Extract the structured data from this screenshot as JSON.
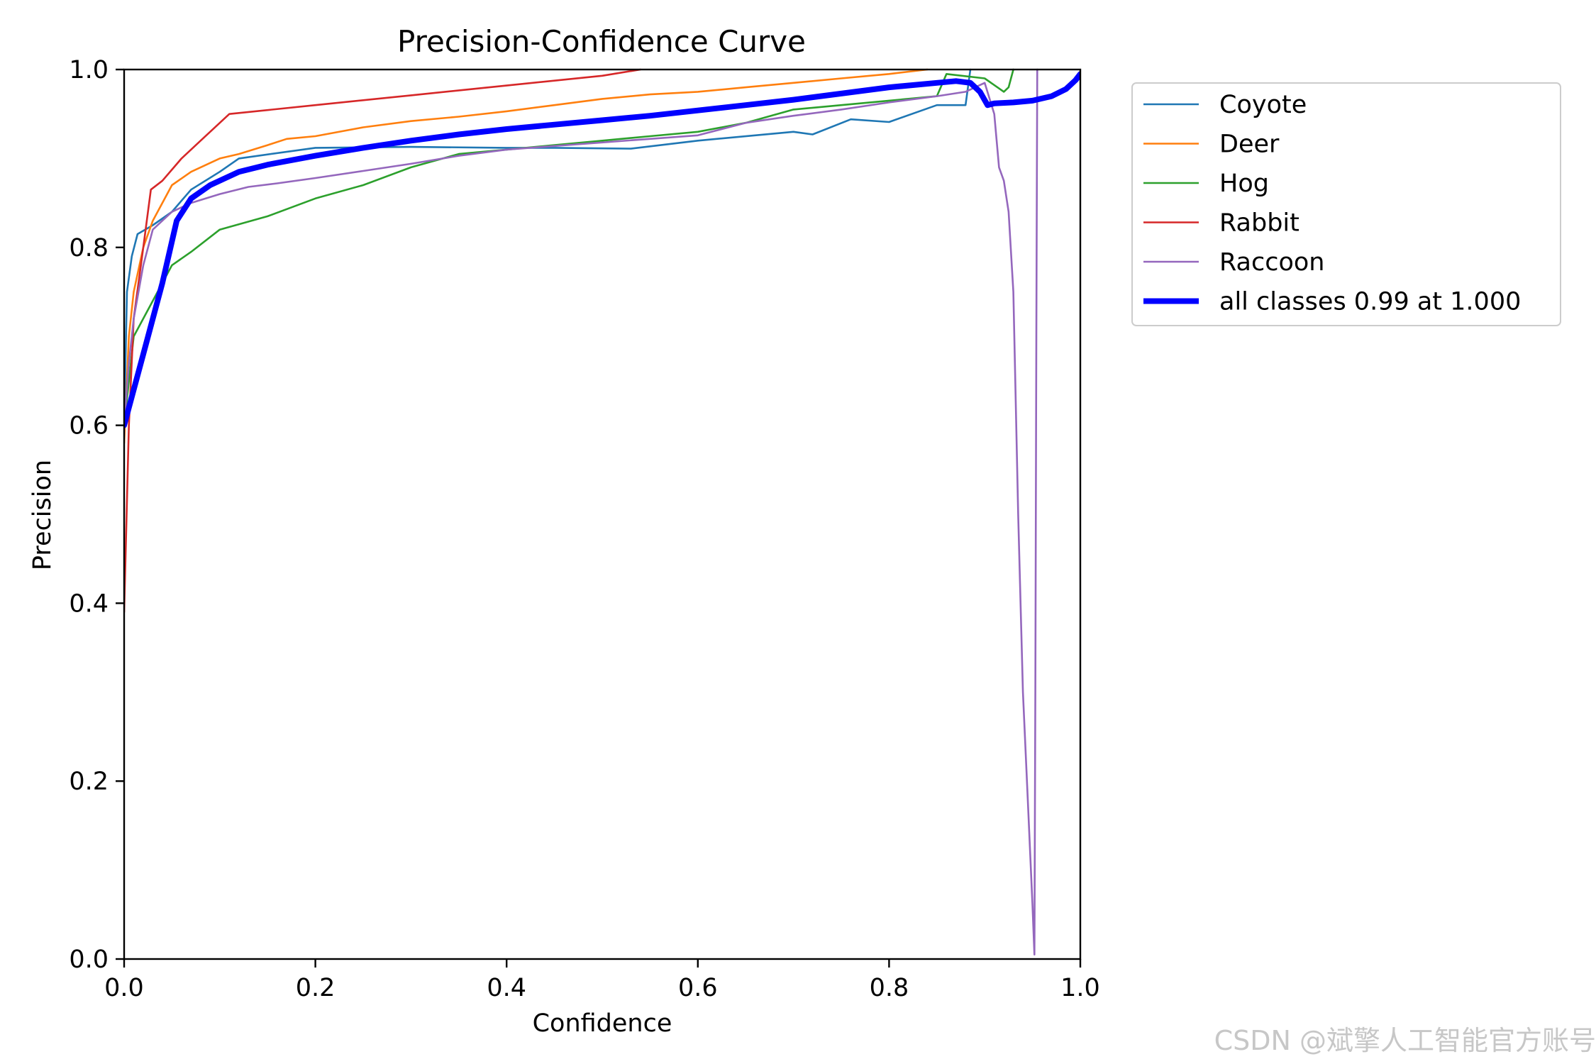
{
  "chart_data": {
    "type": "line",
    "title": "Precision-Confidence Curve",
    "xlabel": "Confidence",
    "ylabel": "Precision",
    "xlim": [
      0.0,
      1.0
    ],
    "ylim": [
      0.0,
      1.0
    ],
    "xticks": [
      "0.0",
      "0.2",
      "0.4",
      "0.6",
      "0.8",
      "1.0"
    ],
    "yticks": [
      "0.0",
      "0.2",
      "0.4",
      "0.6",
      "0.8",
      "1.0"
    ],
    "grid": false,
    "legend_position": "outside-right-top",
    "series": [
      {
        "name": "Coyote",
        "color": "#1f77b4",
        "x": [
          0.0,
          0.003,
          0.008,
          0.014,
          0.03,
          0.05,
          0.07,
          0.1,
          0.12,
          0.2,
          0.3,
          0.4,
          0.45,
          0.53,
          0.6,
          0.7,
          0.72,
          0.76,
          0.8,
          0.85,
          0.87,
          0.88,
          0.885
        ],
        "y": [
          0.6,
          0.75,
          0.79,
          0.815,
          0.825,
          0.84,
          0.865,
          0.885,
          0.9,
          0.912,
          0.913,
          0.912,
          0.912,
          0.911,
          0.92,
          0.93,
          0.927,
          0.944,
          0.941,
          0.96,
          0.96,
          0.96,
          1.0
        ]
      },
      {
        "name": "Deer",
        "color": "#ff7f0e",
        "x": [
          0.0,
          0.005,
          0.01,
          0.02,
          0.03,
          0.05,
          0.07,
          0.09,
          0.1,
          0.12,
          0.15,
          0.17,
          0.2,
          0.25,
          0.3,
          0.35,
          0.4,
          0.45,
          0.5,
          0.55,
          0.6,
          0.65,
          0.7,
          0.75,
          0.8,
          0.84
        ],
        "y": [
          0.58,
          0.7,
          0.75,
          0.8,
          0.83,
          0.87,
          0.885,
          0.895,
          0.9,
          0.905,
          0.915,
          0.922,
          0.925,
          0.935,
          0.942,
          0.947,
          0.953,
          0.96,
          0.967,
          0.972,
          0.975,
          0.98,
          0.985,
          0.99,
          0.995,
          1.0
        ]
      },
      {
        "name": "Hog",
        "color": "#2ca02c",
        "x": [
          0.0,
          0.01,
          0.02,
          0.04,
          0.05,
          0.07,
          0.1,
          0.15,
          0.2,
          0.25,
          0.3,
          0.35,
          0.4,
          0.45,
          0.5,
          0.55,
          0.6,
          0.65,
          0.7,
          0.75,
          0.8,
          0.85,
          0.86,
          0.9,
          0.92,
          0.925,
          0.93
        ],
        "y": [
          0.6,
          0.7,
          0.72,
          0.76,
          0.78,
          0.795,
          0.82,
          0.835,
          0.855,
          0.87,
          0.89,
          0.905,
          0.91,
          0.915,
          0.92,
          0.925,
          0.93,
          0.94,
          0.955,
          0.96,
          0.965,
          0.97,
          0.995,
          0.99,
          0.975,
          0.98,
          1.0
        ]
      },
      {
        "name": "Rabbit",
        "color": "#d62728",
        "x": [
          0.0,
          0.005,
          0.01,
          0.02,
          0.028,
          0.04,
          0.06,
          0.08,
          0.11,
          0.2,
          0.3,
          0.4,
          0.5,
          0.54
        ],
        "y": [
          0.39,
          0.6,
          0.72,
          0.8,
          0.865,
          0.875,
          0.9,
          0.92,
          0.95,
          0.96,
          0.971,
          0.982,
          0.993,
          1.0
        ]
      },
      {
        "name": "Raccoon",
        "color": "#9467bd",
        "x": [
          0.0,
          0.005,
          0.01,
          0.02,
          0.03,
          0.05,
          0.07,
          0.1,
          0.13,
          0.16,
          0.2,
          0.25,
          0.3,
          0.35,
          0.4,
          0.45,
          0.5,
          0.55,
          0.6,
          0.65,
          0.7,
          0.75,
          0.8,
          0.85,
          0.88,
          0.9,
          0.91,
          0.915,
          0.92,
          0.925,
          0.93,
          0.935,
          0.94,
          0.945,
          0.95,
          0.952,
          0.953,
          0.954,
          0.955
        ],
        "y": [
          0.6,
          0.67,
          0.72,
          0.78,
          0.82,
          0.84,
          0.85,
          0.86,
          0.868,
          0.872,
          0.878,
          0.886,
          0.894,
          0.903,
          0.91,
          0.914,
          0.918,
          0.922,
          0.926,
          0.94,
          0.948,
          0.955,
          0.963,
          0.97,
          0.975,
          0.985,
          0.95,
          0.89,
          0.875,
          0.84,
          0.75,
          0.5,
          0.3,
          0.18,
          0.06,
          0.005,
          0.3,
          0.7,
          1.0
        ]
      },
      {
        "name": "all classes 0.99 at 1.000",
        "color": "#0000ff",
        "x": [
          0.0,
          0.02,
          0.04,
          0.055,
          0.07,
          0.09,
          0.12,
          0.15,
          0.2,
          0.25,
          0.3,
          0.35,
          0.4,
          0.45,
          0.5,
          0.55,
          0.6,
          0.65,
          0.7,
          0.75,
          0.8,
          0.85,
          0.87,
          0.885,
          0.895,
          0.903,
          0.91,
          0.93,
          0.95,
          0.97,
          0.985,
          0.995,
          1.0
        ],
        "y": [
          0.6,
          0.68,
          0.76,
          0.83,
          0.855,
          0.87,
          0.885,
          0.893,
          0.903,
          0.912,
          0.92,
          0.927,
          0.933,
          0.938,
          0.943,
          0.948,
          0.954,
          0.96,
          0.966,
          0.973,
          0.98,
          0.985,
          0.987,
          0.985,
          0.975,
          0.96,
          0.962,
          0.963,
          0.965,
          0.97,
          0.978,
          0.988,
          0.995
        ]
      }
    ]
  },
  "watermark": "CSDN @斌擎人工智能官方账号"
}
